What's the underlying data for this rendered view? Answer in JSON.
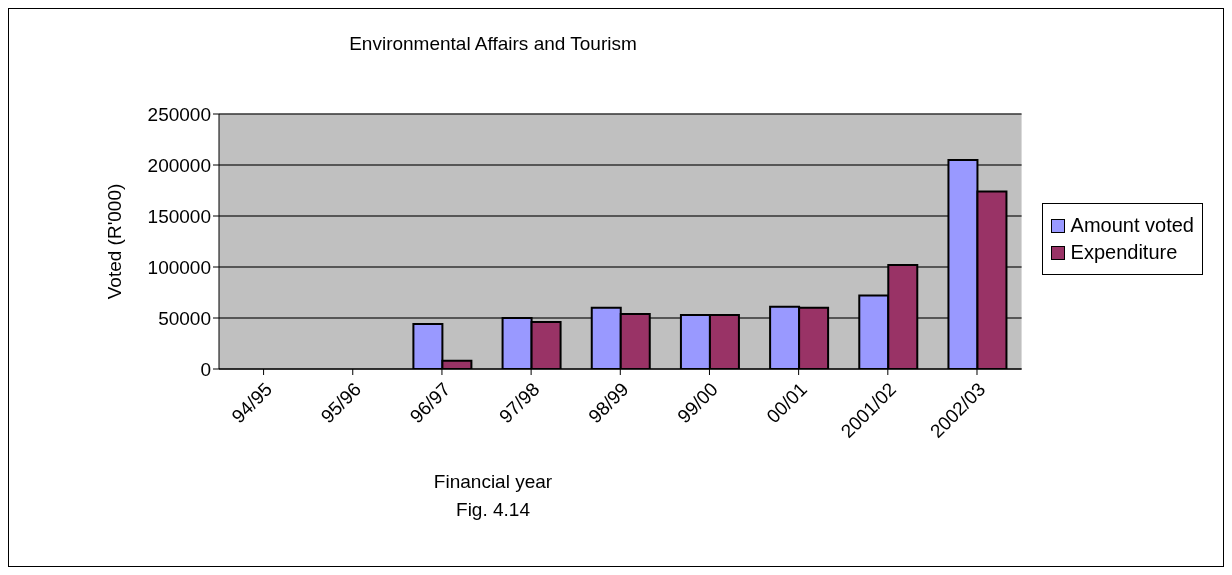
{
  "chart_data": {
    "type": "bar",
    "title": "Environmental Affairs and Tourism",
    "xlabel": "Financial year",
    "ylabel": "Voted (R'000)",
    "annotations": [
      "Fig. 4.14"
    ],
    "categories": [
      "94/95",
      "95/96",
      "96/97",
      "97/98",
      "98/99",
      "99/00",
      "00/01",
      "2001/02",
      "2002/03"
    ],
    "series": [
      {
        "name": "Amount voted",
        "color": "#9999ff",
        "values": [
          null,
          null,
          44000,
          50000,
          60000,
          53000,
          61000,
          72000,
          205000
        ]
      },
      {
        "name": "Expenditure",
        "color": "#993366",
        "values": [
          null,
          null,
          8000,
          46000,
          54000,
          53000,
          60000,
          102000,
          174000
        ]
      }
    ],
    "ylim": [
      0,
      250000
    ],
    "yticks": [
      0,
      50000,
      100000,
      150000,
      200000,
      250000
    ],
    "grid": "y",
    "legend": "right"
  }
}
